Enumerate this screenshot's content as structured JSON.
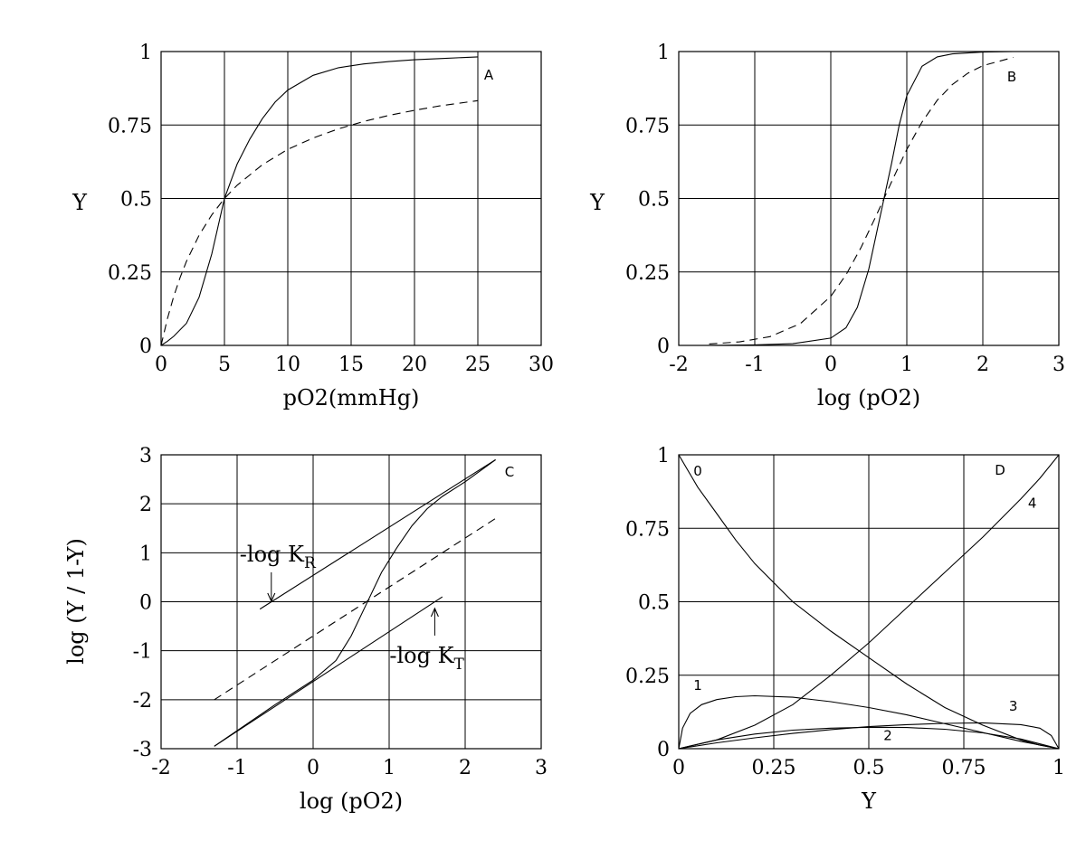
{
  "chart_data": [
    {
      "type": "line",
      "panel_label": "A",
      "xlabel": "pO2(mmHg)",
      "ylabel": "Y",
      "xlim": [
        0,
        30
      ],
      "ylim": [
        0,
        1
      ],
      "xticks": [
        0,
        5,
        10,
        15,
        20,
        25,
        30
      ],
      "yticks": [
        0,
        0.25,
        0.5,
        0.75,
        1
      ],
      "grid": true,
      "series": [
        {
          "style": "solid",
          "x": [
            0,
            0.5,
            1,
            2,
            3,
            4,
            5,
            6,
            7,
            8,
            9,
            10,
            12,
            14,
            16,
            18,
            20,
            22,
            25
          ],
          "y": [
            0,
            0.014,
            0.031,
            0.075,
            0.164,
            0.311,
            0.5,
            0.617,
            0.702,
            0.772,
            0.828,
            0.869,
            0.919,
            0.945,
            0.958,
            0.966,
            0.972,
            0.976,
            0.982
          ]
        },
        {
          "style": "dashed",
          "x": [
            0,
            0.5,
            1,
            1.5,
            2,
            3,
            4,
            5,
            6,
            8,
            10,
            12,
            14,
            16,
            18,
            20,
            22,
            25
          ],
          "y": [
            0,
            0.091,
            0.167,
            0.231,
            0.286,
            0.375,
            0.444,
            0.5,
            0.545,
            0.615,
            0.667,
            0.706,
            0.737,
            0.762,
            0.783,
            0.8,
            0.815,
            0.833
          ]
        }
      ]
    },
    {
      "type": "line",
      "panel_label": "B",
      "xlabel": "log (pO2)",
      "ylabel": "Y",
      "xlim": [
        -2,
        3
      ],
      "ylim": [
        0,
        1
      ],
      "xticks": [
        -2,
        -1,
        0,
        1,
        2,
        3
      ],
      "yticks": [
        0,
        0.25,
        0.5,
        0.75,
        1
      ],
      "grid": true,
      "series": [
        {
          "style": "solid",
          "x": [
            -1.6,
            -1,
            -0.5,
            0,
            0.2,
            0.35,
            0.5,
            0.6,
            0.7,
            0.8,
            0.9,
            1,
            1.2,
            1.4,
            1.6,
            2,
            2.4
          ],
          "y": [
            0,
            0.002,
            0.006,
            0.025,
            0.06,
            0.13,
            0.26,
            0.38,
            0.5,
            0.62,
            0.75,
            0.85,
            0.95,
            0.982,
            0.992,
            0.998,
            1.0
          ]
        },
        {
          "style": "dashed",
          "x": [
            -1.6,
            -1.2,
            -0.8,
            -0.4,
            0,
            0.2,
            0.4,
            0.6,
            0.7,
            0.8,
            1,
            1.2,
            1.4,
            1.6,
            1.8,
            2,
            2.4
          ],
          "y": [
            0.005,
            0.012,
            0.03,
            0.074,
            0.167,
            0.24,
            0.334,
            0.443,
            0.5,
            0.557,
            0.667,
            0.76,
            0.834,
            0.888,
            0.926,
            0.952,
            0.98
          ]
        }
      ]
    },
    {
      "type": "line",
      "panel_label": "C",
      "xlabel": "log (pO2)",
      "ylabel": "log (Y / 1-Y)",
      "xlim": [
        -2,
        3
      ],
      "ylim": [
        -3,
        3
      ],
      "xticks": [
        -2,
        -1,
        0,
        1,
        2,
        3
      ],
      "yticks": [
        -3,
        -2,
        -1,
        0,
        1,
        2,
        3
      ],
      "grid": true,
      "annotations": [
        {
          "text": "-log K",
          "subscript": "R",
          "points_to": [
            -0.55,
            -0.1
          ]
        },
        {
          "text": "-log K",
          "subscript": "T",
          "points_to": [
            1.6,
            -0.1
          ]
        }
      ],
      "series": [
        {
          "style": "solid",
          "x": [
            -0.7,
            2.4
          ],
          "y": [
            -0.15,
            2.9
          ]
        },
        {
          "style": "solid",
          "x": [
            -1.3,
            1.7
          ],
          "y": [
            -2.95,
            0.1
          ]
        },
        {
          "style": "dashed",
          "x": [
            -1.3,
            2.4
          ],
          "y": [
            -2.0,
            1.7
          ]
        },
        {
          "style": "solid",
          "x": [
            -1.3,
            -0.5,
            0,
            0.3,
            0.5,
            0.7,
            0.9,
            1.1,
            1.3,
            1.5,
            1.7,
            2,
            2.4
          ],
          "y": [
            -2.95,
            -2.1,
            -1.6,
            -1.2,
            -0.7,
            -0.05,
            0.6,
            1.1,
            1.55,
            1.9,
            2.15,
            2.45,
            2.9
          ]
        }
      ]
    },
    {
      "type": "line",
      "panel_label": "D",
      "xlabel": "Y",
      "ylabel": "",
      "xlim": [
        0,
        1
      ],
      "ylim": [
        0,
        1
      ],
      "xticks": [
        0,
        0.25,
        0.5,
        0.75,
        1
      ],
      "yticks": [
        0,
        0.25,
        0.5,
        0.75,
        1
      ],
      "grid": true,
      "series": [
        {
          "name": "0",
          "style": "solid",
          "x": [
            0,
            0.05,
            0.1,
            0.15,
            0.2,
            0.3,
            0.4,
            0.5,
            0.6,
            0.7,
            0.8,
            0.9,
            0.95,
            1
          ],
          "y": [
            1,
            0.89,
            0.8,
            0.71,
            0.63,
            0.5,
            0.4,
            0.31,
            0.22,
            0.14,
            0.08,
            0.03,
            0.012,
            0
          ]
        },
        {
          "name": "4",
          "style": "solid",
          "x": [
            0,
            0.1,
            0.2,
            0.3,
            0.4,
            0.5,
            0.6,
            0.7,
            0.8,
            0.9,
            0.95,
            1
          ],
          "y": [
            0,
            0.03,
            0.08,
            0.15,
            0.25,
            0.36,
            0.48,
            0.6,
            0.72,
            0.85,
            0.92,
            1
          ]
        },
        {
          "name": "1",
          "style": "solid",
          "x": [
            0,
            0.01,
            0.03,
            0.06,
            0.1,
            0.15,
            0.2,
            0.3,
            0.4,
            0.5,
            0.6,
            0.7,
            0.8,
            0.9,
            1
          ],
          "y": [
            0,
            0.07,
            0.12,
            0.15,
            0.167,
            0.177,
            0.18,
            0.175,
            0.16,
            0.14,
            0.115,
            0.085,
            0.055,
            0.025,
            0
          ]
        },
        {
          "name": "2",
          "style": "solid",
          "x": [
            0,
            0.1,
            0.2,
            0.3,
            0.4,
            0.5,
            0.6,
            0.7,
            0.8,
            0.9,
            1
          ],
          "y": [
            0,
            0.03,
            0.05,
            0.063,
            0.07,
            0.073,
            0.072,
            0.066,
            0.054,
            0.033,
            0
          ]
        },
        {
          "name": "3",
          "style": "solid",
          "x": [
            0,
            0.1,
            0.2,
            0.3,
            0.4,
            0.5,
            0.6,
            0.7,
            0.8,
            0.9,
            0.95,
            0.98,
            1
          ],
          "y": [
            0,
            0.02,
            0.037,
            0.052,
            0.065,
            0.075,
            0.082,
            0.086,
            0.088,
            0.082,
            0.07,
            0.045,
            0
          ]
        }
      ],
      "curve_labels": [
        {
          "text": "0",
          "at": [
            0.05,
            0.93
          ]
        },
        {
          "text": "4",
          "at": [
            0.93,
            0.82
          ]
        },
        {
          "text": "1",
          "at": [
            0.05,
            0.2
          ]
        },
        {
          "text": "2",
          "at": [
            0.55,
            0.03
          ]
        },
        {
          "text": "3",
          "at": [
            0.88,
            0.13
          ]
        }
      ]
    }
  ]
}
